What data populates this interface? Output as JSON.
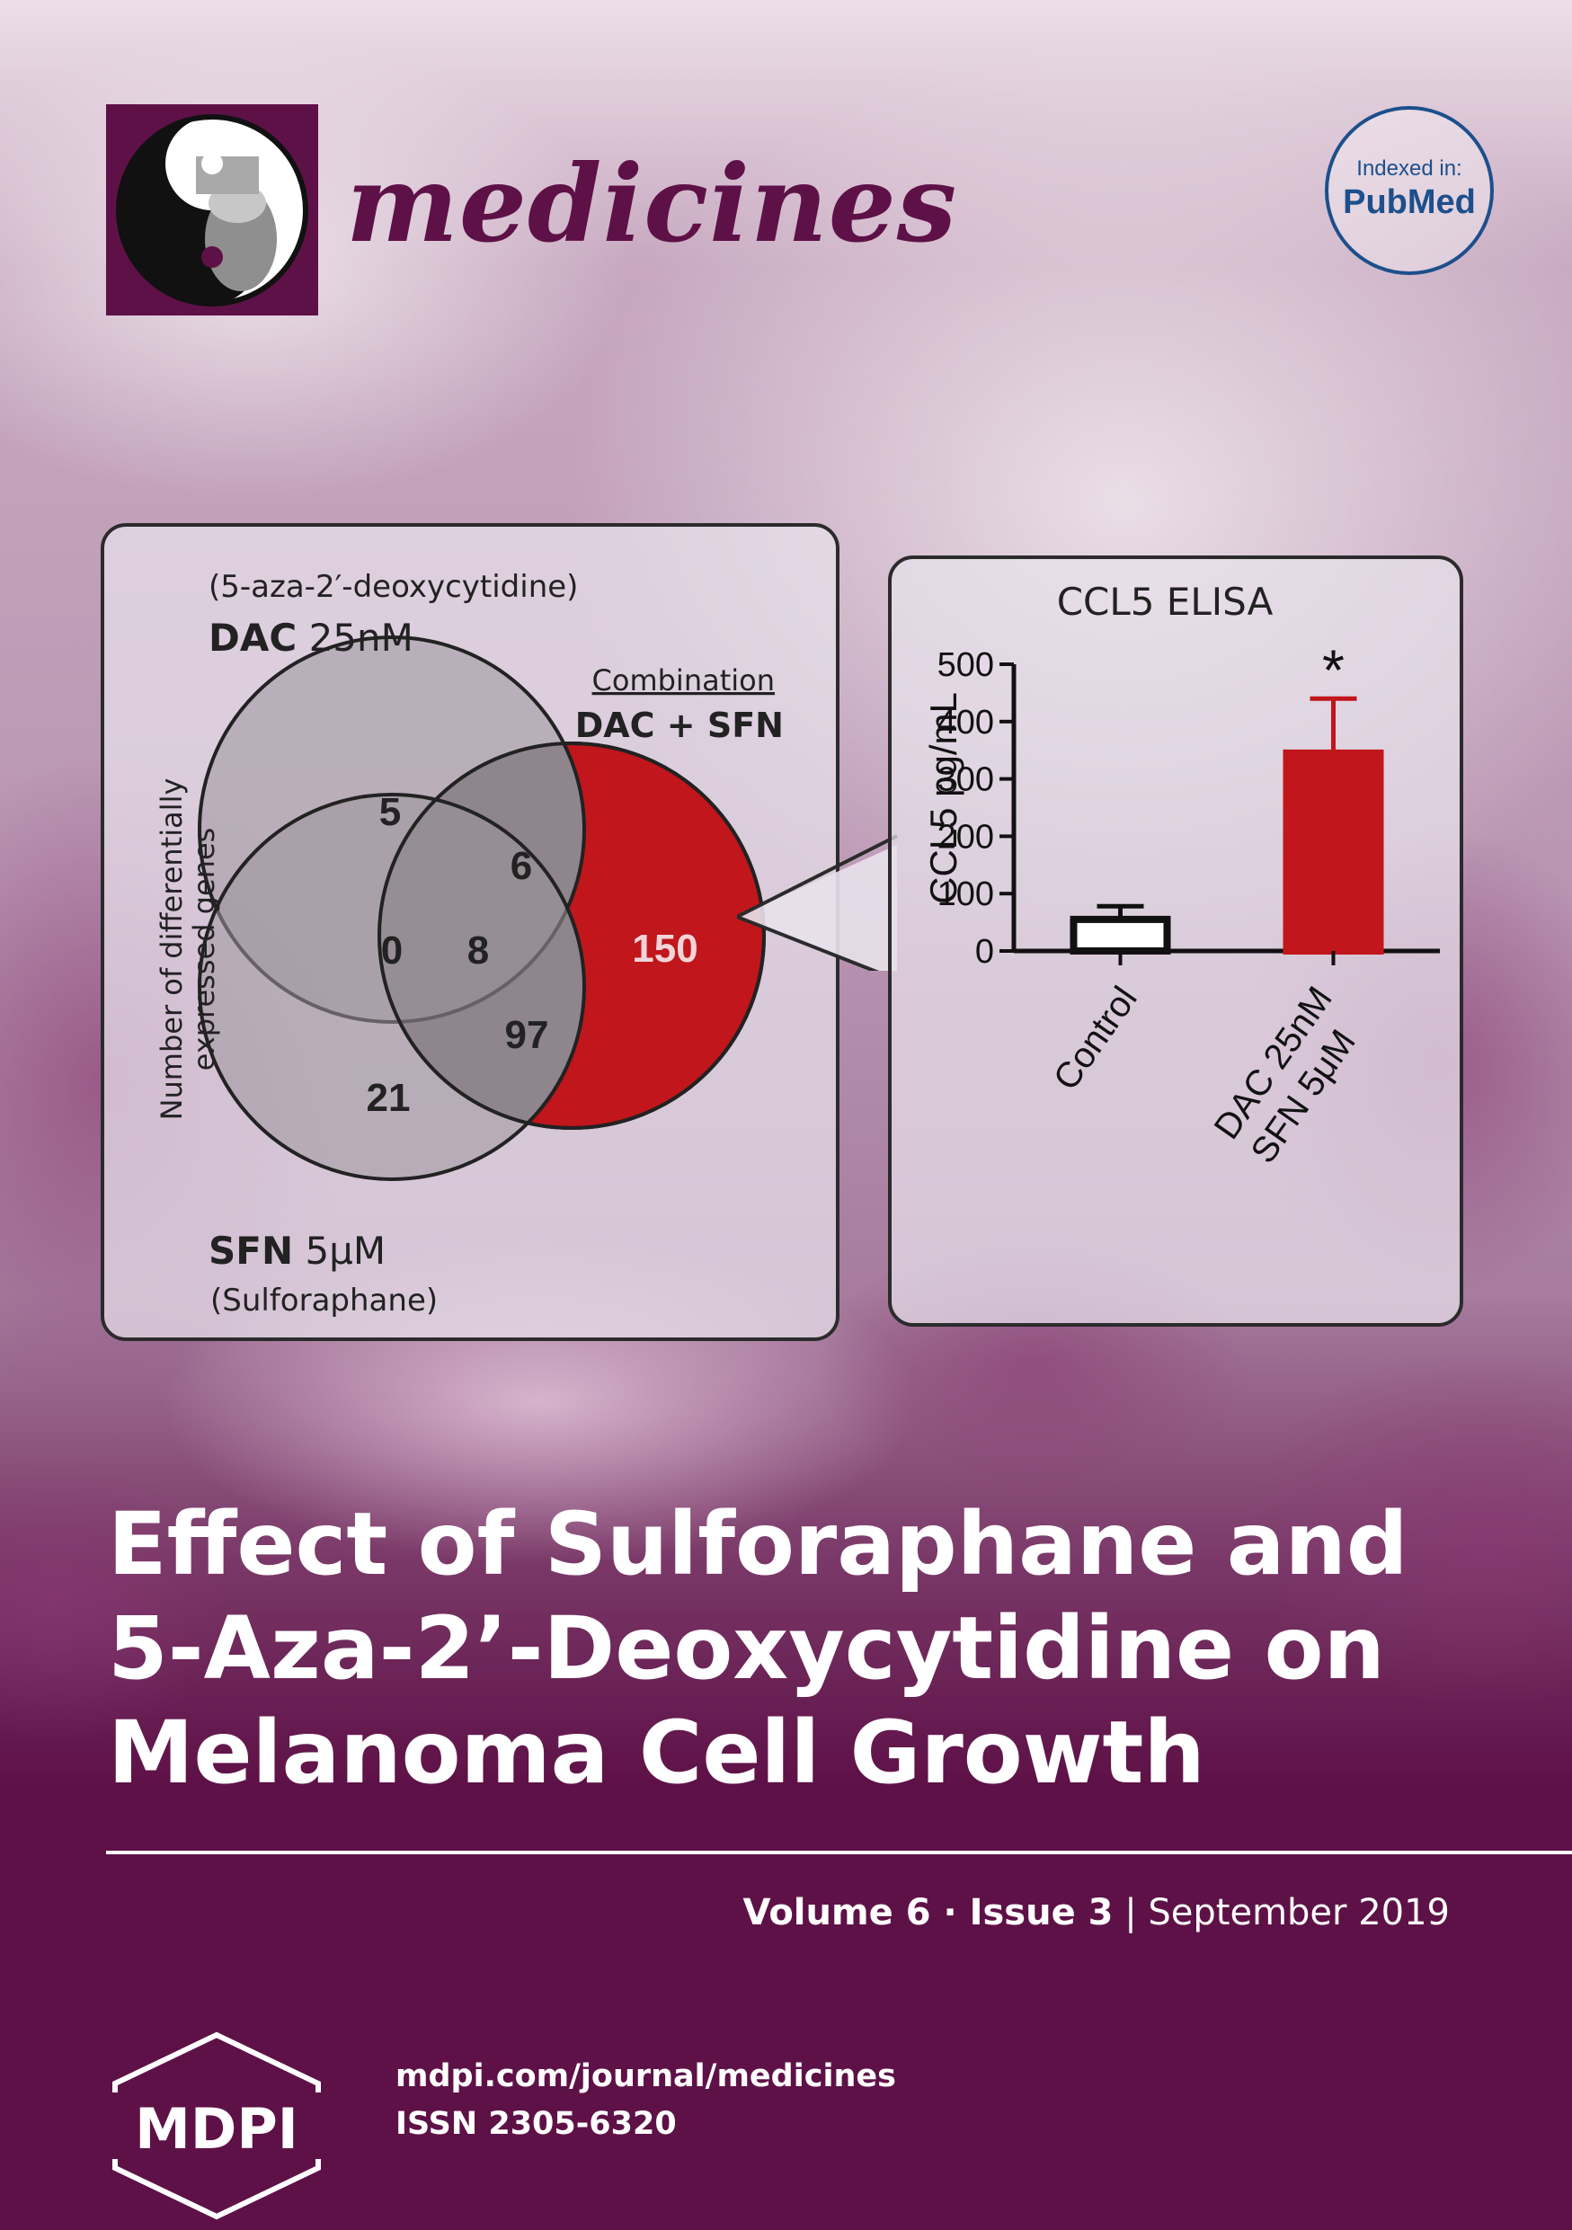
{
  "journal": {
    "name": "medicines",
    "indexed_label": "Indexed in:",
    "indexed_name": "PubMed"
  },
  "colors": {
    "brand": "#5e1147",
    "accent_red": "#c0161c",
    "pubmed_blue": "#1d4f8c"
  },
  "venn": {
    "dac_sub": "(5-aza-2′-deoxycytidine)",
    "dac_bold": "DAC",
    "dac_dose": "25nM",
    "combo_label": "Combination",
    "combo_bold": "DAC + SFN",
    "y_label_line1": "Number of differentially",
    "y_label_line2": "expressed genes",
    "sfn_bold": "SFN",
    "sfn_dose": "5μM",
    "sfn_sub": "(Sulforaphane)",
    "counts": {
      "dac_only": "5",
      "dac_combo": "6",
      "dac_sfn": "0",
      "all_three": "8",
      "combo_only": "150",
      "sfn_combo": "97",
      "sfn_only": "21"
    }
  },
  "chart_data": {
    "type": "bar",
    "title": "CCL5 ELISA",
    "ylabel": "CCL5 pg/mL",
    "xlabel": "",
    "ylim": [
      0,
      500
    ],
    "yticks": [
      0,
      100,
      200,
      300,
      400,
      500
    ],
    "categories": [
      [
        "Control"
      ],
      [
        "DAC 25nM",
        "SFN 5μM"
      ]
    ],
    "values": [
      55,
      345
    ],
    "error_upper": [
      78,
      440
    ],
    "fills": [
      "#ffffff",
      "#c0161c"
    ],
    "annotations": [
      "",
      "*"
    ]
  },
  "cover": {
    "title_lines": [
      "Effect of Sulforaphane and",
      "5-Aza-2’-Deoxycytidine on",
      "Melanoma Cell Growth"
    ],
    "volume": "Volume 6",
    "issue": "Issue 3",
    "date": "September 2019",
    "url": "mdpi.com/journal/medicines",
    "issn": "ISSN 2305-6320",
    "publisher": "MDPI"
  }
}
